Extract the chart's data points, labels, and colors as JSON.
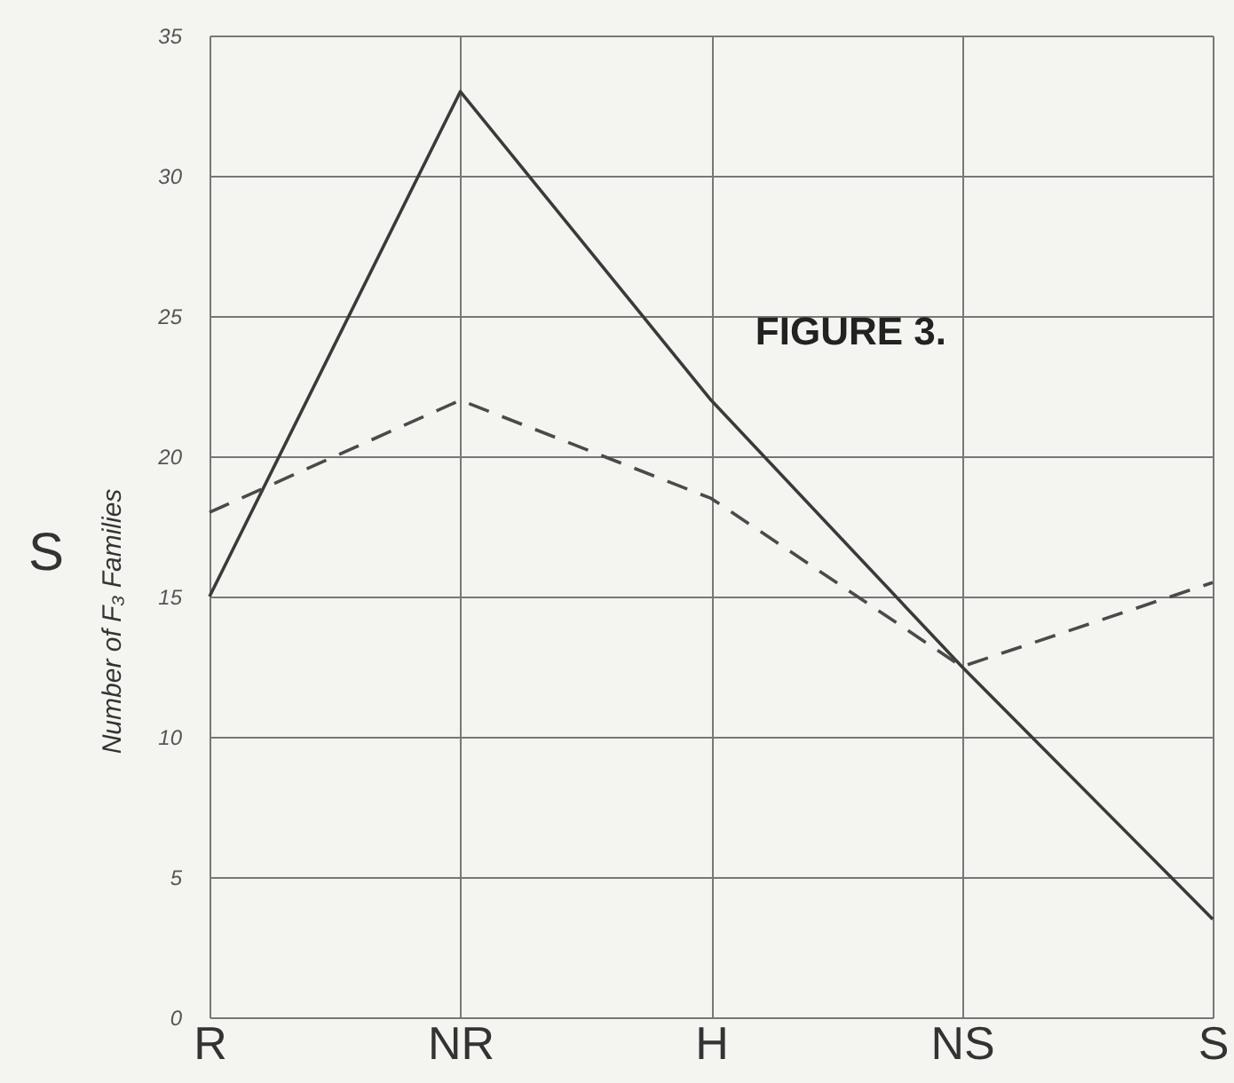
{
  "chart_data": {
    "type": "line",
    "title": "FIGURE 3.",
    "ylabel": "Number of F₃ Families",
    "annotations": [
      "S"
    ],
    "categories": [
      "R",
      "NR",
      "H",
      "NS",
      "S"
    ],
    "series": [
      {
        "color": "#3a3a3a",
        "line_style": "solid",
        "values": [
          15,
          33,
          22,
          12.5,
          3.5
        ]
      },
      {
        "color": "#4a4a4a",
        "line_style": "dashed",
        "values": [
          18,
          22,
          18.5,
          12.5,
          15.5
        ]
      }
    ],
    "ylim": [
      0,
      35
    ],
    "yticks": [
      0,
      5,
      10,
      15,
      20,
      25,
      30,
      35
    ],
    "grid": true,
    "marker": "none"
  }
}
